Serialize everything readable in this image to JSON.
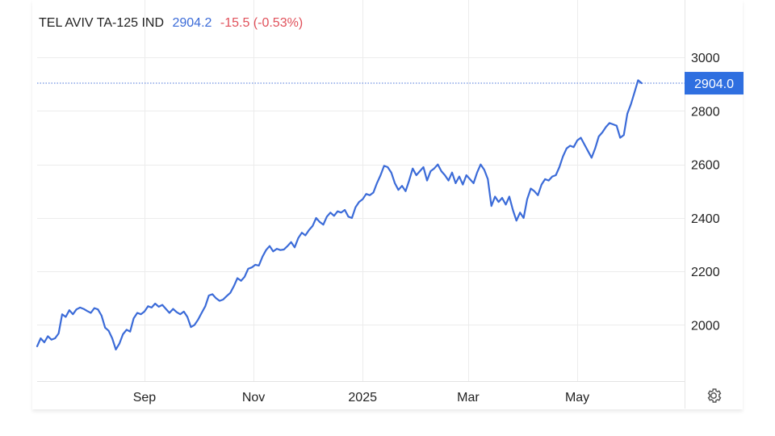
{
  "header": {
    "name": "TEL AVIV TA-125 IND",
    "last": "2904.2",
    "change": "-15.5 (-0.53%)"
  },
  "colors": {
    "line": "#3b6bd8",
    "change_negative": "#e0505a",
    "badge": "#2f6fe0"
  },
  "icons": {
    "settings": "gear-icon"
  },
  "chart_data": {
    "type": "line",
    "title": "TEL AVIV TA-125 IND",
    "xlabel": "",
    "ylabel": "",
    "grid": true,
    "ylim": [
      1790,
      3040
    ],
    "xlim": [
      "2024-07-03",
      "2025-06-30"
    ],
    "x_ticks": [
      {
        "date": "2024-09-01",
        "label": "Sep"
      },
      {
        "date": "2024-11-01",
        "label": "Nov"
      },
      {
        "date": "2025-01-01",
        "label": "2025"
      },
      {
        "date": "2025-03-01",
        "label": "Mar"
      },
      {
        "date": "2025-05-01",
        "label": "May"
      }
    ],
    "y_ticks": [
      2000,
      2200,
      2400,
      2600,
      2800,
      3000
    ],
    "current_value_label": "2904.0",
    "current_value": 2904,
    "series": [
      {
        "points": [
          [
            "2024-07-03",
            1920
          ],
          [
            "2024-07-05",
            1950
          ],
          [
            "2024-07-07",
            1935
          ],
          [
            "2024-07-09",
            1958
          ],
          [
            "2024-07-11",
            1945
          ],
          [
            "2024-07-13",
            1950
          ],
          [
            "2024-07-15",
            1968
          ],
          [
            "2024-07-17",
            2040
          ],
          [
            "2024-07-19",
            2030
          ],
          [
            "2024-07-21",
            2055
          ],
          [
            "2024-07-23",
            2040
          ],
          [
            "2024-07-25",
            2058
          ],
          [
            "2024-07-27",
            2065
          ],
          [
            "2024-07-29",
            2060
          ],
          [
            "2024-07-31",
            2052
          ],
          [
            "2024-08-02",
            2045
          ],
          [
            "2024-08-04",
            2063
          ],
          [
            "2024-08-06",
            2058
          ],
          [
            "2024-08-08",
            2035
          ],
          [
            "2024-08-10",
            1990
          ],
          [
            "2024-08-12",
            1978
          ],
          [
            "2024-08-14",
            1950
          ],
          [
            "2024-08-16",
            1908
          ],
          [
            "2024-08-18",
            1930
          ],
          [
            "2024-08-20",
            1965
          ],
          [
            "2024-08-22",
            1982
          ],
          [
            "2024-08-24",
            1975
          ],
          [
            "2024-08-26",
            2025
          ],
          [
            "2024-08-28",
            2045
          ],
          [
            "2024-08-30",
            2040
          ],
          [
            "2024-09-01",
            2050
          ],
          [
            "2024-09-03",
            2070
          ],
          [
            "2024-09-05",
            2065
          ],
          [
            "2024-09-07",
            2080
          ],
          [
            "2024-09-09",
            2068
          ],
          [
            "2024-09-11",
            2075
          ],
          [
            "2024-09-13",
            2060
          ],
          [
            "2024-09-15",
            2045
          ],
          [
            "2024-09-17",
            2060
          ],
          [
            "2024-09-19",
            2048
          ],
          [
            "2024-09-21",
            2040
          ],
          [
            "2024-09-23",
            2050
          ],
          [
            "2024-09-25",
            2030
          ],
          [
            "2024-09-27",
            1992
          ],
          [
            "2024-09-29",
            2000
          ],
          [
            "2024-10-01",
            2020
          ],
          [
            "2024-10-03",
            2045
          ],
          [
            "2024-10-05",
            2070
          ],
          [
            "2024-10-07",
            2110
          ],
          [
            "2024-10-09",
            2115
          ],
          [
            "2024-10-11",
            2100
          ],
          [
            "2024-10-13",
            2090
          ],
          [
            "2024-10-15",
            2095
          ],
          [
            "2024-10-17",
            2108
          ],
          [
            "2024-10-19",
            2120
          ],
          [
            "2024-10-21",
            2145
          ],
          [
            "2024-10-23",
            2175
          ],
          [
            "2024-10-25",
            2165
          ],
          [
            "2024-10-27",
            2180
          ],
          [
            "2024-10-29",
            2210
          ],
          [
            "2024-10-31",
            2215
          ],
          [
            "2024-11-02",
            2225
          ],
          [
            "2024-11-04",
            2222
          ],
          [
            "2024-11-06",
            2255
          ],
          [
            "2024-11-08",
            2280
          ],
          [
            "2024-11-10",
            2295
          ],
          [
            "2024-11-12",
            2275
          ],
          [
            "2024-11-14",
            2285
          ],
          [
            "2024-11-16",
            2280
          ],
          [
            "2024-11-18",
            2282
          ],
          [
            "2024-11-20",
            2295
          ],
          [
            "2024-11-22",
            2310
          ],
          [
            "2024-11-24",
            2290
          ],
          [
            "2024-11-26",
            2325
          ],
          [
            "2024-11-28",
            2345
          ],
          [
            "2024-11-30",
            2335
          ],
          [
            "2024-12-02",
            2355
          ],
          [
            "2024-12-04",
            2370
          ],
          [
            "2024-12-06",
            2400
          ],
          [
            "2024-12-08",
            2385
          ],
          [
            "2024-12-10",
            2375
          ],
          [
            "2024-12-12",
            2405
          ],
          [
            "2024-12-14",
            2420
          ],
          [
            "2024-12-16",
            2408
          ],
          [
            "2024-12-18",
            2425
          ],
          [
            "2024-12-20",
            2420
          ],
          [
            "2024-12-22",
            2430
          ],
          [
            "2024-12-24",
            2405
          ],
          [
            "2024-12-26",
            2400
          ],
          [
            "2024-12-28",
            2440
          ],
          [
            "2024-12-30",
            2460
          ],
          [
            "2025-01-01",
            2470
          ],
          [
            "2025-01-03",
            2490
          ],
          [
            "2025-01-05",
            2485
          ],
          [
            "2025-01-07",
            2495
          ],
          [
            "2025-01-09",
            2530
          ],
          [
            "2025-01-11",
            2560
          ],
          [
            "2025-01-13",
            2595
          ],
          [
            "2025-01-15",
            2590
          ],
          [
            "2025-01-17",
            2570
          ],
          [
            "2025-01-19",
            2530
          ],
          [
            "2025-01-21",
            2505
          ],
          [
            "2025-01-23",
            2520
          ],
          [
            "2025-01-25",
            2500
          ],
          [
            "2025-01-27",
            2540
          ],
          [
            "2025-01-29",
            2585
          ],
          [
            "2025-01-31",
            2560
          ],
          [
            "2025-02-02",
            2575
          ],
          [
            "2025-02-04",
            2590
          ],
          [
            "2025-02-06",
            2540
          ],
          [
            "2025-02-08",
            2575
          ],
          [
            "2025-02-10",
            2585
          ],
          [
            "2025-02-12",
            2600
          ],
          [
            "2025-02-14",
            2575
          ],
          [
            "2025-02-16",
            2560
          ],
          [
            "2025-02-18",
            2540
          ],
          [
            "2025-02-20",
            2570
          ],
          [
            "2025-02-22",
            2530
          ],
          [
            "2025-02-24",
            2555
          ],
          [
            "2025-02-26",
            2525
          ],
          [
            "2025-02-28",
            2560
          ],
          [
            "2025-03-02",
            2545
          ],
          [
            "2025-03-04",
            2530
          ],
          [
            "2025-03-06",
            2570
          ],
          [
            "2025-03-08",
            2600
          ],
          [
            "2025-03-10",
            2580
          ],
          [
            "2025-03-12",
            2545
          ],
          [
            "2025-03-14",
            2445
          ],
          [
            "2025-03-16",
            2480
          ],
          [
            "2025-03-18",
            2460
          ],
          [
            "2025-03-20",
            2475
          ],
          [
            "2025-03-22",
            2450
          ],
          [
            "2025-03-24",
            2480
          ],
          [
            "2025-03-26",
            2430
          ],
          [
            "2025-03-28",
            2390
          ],
          [
            "2025-03-30",
            2420
          ],
          [
            "2025-04-01",
            2400
          ],
          [
            "2025-04-03",
            2470
          ],
          [
            "2025-04-05",
            2510
          ],
          [
            "2025-04-07",
            2500
          ],
          [
            "2025-04-09",
            2485
          ],
          [
            "2025-04-11",
            2525
          ],
          [
            "2025-04-13",
            2545
          ],
          [
            "2025-04-15",
            2540
          ],
          [
            "2025-04-17",
            2555
          ],
          [
            "2025-04-19",
            2560
          ],
          [
            "2025-04-21",
            2590
          ],
          [
            "2025-04-23",
            2630
          ],
          [
            "2025-04-25",
            2660
          ],
          [
            "2025-04-27",
            2670
          ],
          [
            "2025-04-29",
            2665
          ],
          [
            "2025-05-01",
            2690
          ],
          [
            "2025-05-03",
            2700
          ],
          [
            "2025-05-05",
            2675
          ],
          [
            "2025-05-07",
            2650
          ],
          [
            "2025-05-09",
            2625
          ],
          [
            "2025-05-11",
            2660
          ],
          [
            "2025-05-13",
            2705
          ],
          [
            "2025-05-15",
            2720
          ],
          [
            "2025-05-17",
            2740
          ],
          [
            "2025-05-19",
            2755
          ],
          [
            "2025-05-21",
            2750
          ],
          [
            "2025-05-23",
            2745
          ],
          [
            "2025-05-25",
            2700
          ],
          [
            "2025-05-27",
            2710
          ],
          [
            "2025-05-29",
            2790
          ],
          [
            "2025-05-31",
            2825
          ],
          [
            "2025-06-02",
            2870
          ],
          [
            "2025-06-04",
            2915
          ],
          [
            "2025-06-06",
            2904
          ]
        ]
      }
    ]
  }
}
